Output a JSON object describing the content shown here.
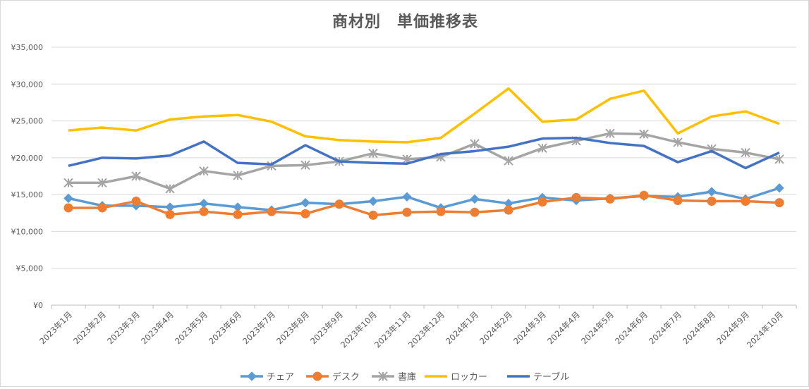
{
  "chart_data": {
    "type": "line",
    "title": "商材別　単価推移表",
    "categories": [
      "2023年1月",
      "2023年2月",
      "2023年3月",
      "2023年4月",
      "2023年5月",
      "2023年6月",
      "2023年7月",
      "2023年8月",
      "2023年9月",
      "2023年10月",
      "2023年11月",
      "2023年12月",
      "2024年1月",
      "2024年2月",
      "2024年3月",
      "2024年4月",
      "2024年5月",
      "2024年6月",
      "2024年7月",
      "2024年8月",
      "2024年9月",
      "2024年10月"
    ],
    "y_ticks": [
      "¥0",
      "¥5,000",
      "¥10,000",
      "¥15,000",
      "¥20,000",
      "¥25,000",
      "¥30,000",
      "¥35,000"
    ],
    "ylim": [
      0,
      35000
    ],
    "grid": true,
    "legend_position": "bottom",
    "series": [
      {
        "name": "チェア",
        "color": "#5b9bd5",
        "marker": "diamond",
        "values": [
          14500,
          13500,
          13500,
          13300,
          13800,
          13300,
          12900,
          13900,
          13700,
          14100,
          14700,
          13200,
          14400,
          13800,
          14600,
          14200,
          14500,
          14800,
          14700,
          15400,
          14400,
          15900
        ]
      },
      {
        "name": "デスク",
        "color": "#ed7d31",
        "marker": "circle",
        "values": [
          13200,
          13200,
          14100,
          12300,
          12700,
          12300,
          12700,
          12400,
          13700,
          12200,
          12600,
          12700,
          12600,
          12900,
          14000,
          14600,
          14400,
          14900,
          14200,
          14100,
          14100,
          13900
        ]
      },
      {
        "name": "書庫",
        "color": "#a5a5a5",
        "marker": "star",
        "values": [
          16600,
          16600,
          17500,
          15800,
          18200,
          17600,
          18900,
          19000,
          19500,
          20600,
          19800,
          20100,
          21900,
          19600,
          21300,
          22300,
          23300,
          23200,
          22100,
          21200,
          20700,
          19800
        ]
      },
      {
        "name": "ロッカー",
        "color": "#ffc000",
        "marker": "none",
        "values": [
          23700,
          24100,
          23700,
          25200,
          25600,
          25800,
          24900,
          22900,
          22400,
          22200,
          22100,
          22700,
          26000,
          29400,
          24900,
          25200,
          28000,
          29100,
          23300,
          25600,
          26300,
          24600
        ]
      },
      {
        "name": "テーブル",
        "color": "#4472c4",
        "marker": "none",
        "values": [
          18900,
          20000,
          19900,
          20300,
          22200,
          19300,
          19100,
          21700,
          19500,
          19300,
          19200,
          20500,
          20900,
          21500,
          22600,
          22700,
          22000,
          21600,
          19400,
          20900,
          18600,
          20700
        ]
      }
    ]
  }
}
